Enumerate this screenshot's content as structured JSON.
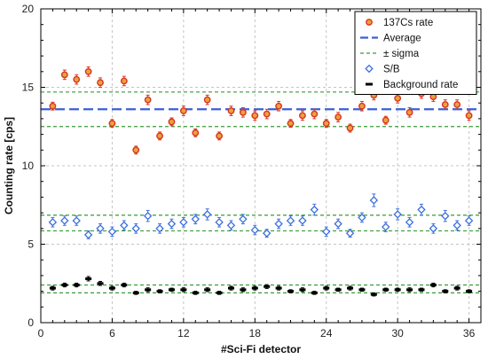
{
  "chart_data": {
    "type": "scatter",
    "xlabel": "#Sci-Fi detector",
    "ylabel": "Counting rate [cps]",
    "xlim": [
      0,
      37
    ],
    "ylim": [
      0,
      20
    ],
    "xticks": [
      0,
      6,
      12,
      18,
      24,
      30,
      36
    ],
    "yticks": [
      0,
      5,
      10,
      15,
      20
    ],
    "grid": true,
    "legend_position": "top-right",
    "legend": [
      {
        "label": "137Cs rate",
        "kind": "circle-marker",
        "color": "#d9341f"
      },
      {
        "label": "Average",
        "kind": "dashed-line",
        "color": "#3d5fd8"
      },
      {
        "label": "± sigma",
        "kind": "dotted-line",
        "color": "#3a9a3a"
      },
      {
        "label": "S/B",
        "kind": "diamond-marker",
        "color": "#3d6fdb"
      },
      {
        "label": "Background rate",
        "kind": "dash-marker",
        "color": "#000000"
      }
    ],
    "series": [
      {
        "name": "137Cs rate",
        "color": "#d9341f",
        "marker": "circle",
        "x": [
          1,
          2,
          3,
          4,
          5,
          6,
          7,
          8,
          9,
          10,
          11,
          12,
          13,
          14,
          15,
          16,
          17,
          18,
          19,
          20,
          21,
          22,
          23,
          24,
          25,
          26,
          27,
          28,
          29,
          30,
          31,
          32,
          33,
          34,
          35,
          36
        ],
        "y": [
          13.8,
          15.8,
          15.5,
          16.0,
          15.3,
          12.7,
          15.4,
          11.0,
          14.2,
          11.9,
          12.8,
          13.5,
          12.1,
          14.2,
          11.9,
          13.5,
          13.4,
          13.2,
          13.3,
          13.8,
          12.7,
          13.2,
          13.3,
          12.7,
          13.1,
          12.4,
          13.8,
          14.5,
          12.9,
          14.3,
          13.4,
          14.6,
          14.4,
          13.9,
          13.9,
          13.2
        ],
        "err": [
          0.25,
          0.3,
          0.3,
          0.3,
          0.3,
          0.25,
          0.3,
          0.25,
          0.3,
          0.25,
          0.25,
          0.3,
          0.25,
          0.3,
          0.25,
          0.3,
          0.3,
          0.3,
          0.3,
          0.3,
          0.25,
          0.3,
          0.3,
          0.25,
          0.3,
          0.25,
          0.3,
          0.3,
          0.25,
          0.3,
          0.3,
          0.3,
          0.3,
          0.3,
          0.3,
          0.3
        ]
      },
      {
        "name": "S/B",
        "color": "#3d6fdb",
        "marker": "diamond",
        "x": [
          1,
          2,
          3,
          4,
          5,
          6,
          7,
          8,
          9,
          10,
          11,
          12,
          13,
          14,
          15,
          16,
          17,
          18,
          19,
          20,
          21,
          22,
          23,
          24,
          25,
          26,
          27,
          28,
          29,
          30,
          31,
          32,
          33,
          34,
          35,
          36
        ],
        "y": [
          6.4,
          6.5,
          6.5,
          5.6,
          6.0,
          5.8,
          6.2,
          6.0,
          6.8,
          6.0,
          6.3,
          6.4,
          6.6,
          6.9,
          6.4,
          6.2,
          6.6,
          5.9,
          5.7,
          6.3,
          6.5,
          6.5,
          7.2,
          5.8,
          6.3,
          5.7,
          6.7,
          7.8,
          6.1,
          6.9,
          6.4,
          7.2,
          6.0,
          6.8,
          6.2,
          6.5
        ],
        "err": [
          0.3,
          0.3,
          0.3,
          0.25,
          0.3,
          0.3,
          0.3,
          0.3,
          0.35,
          0.3,
          0.3,
          0.3,
          0.3,
          0.35,
          0.3,
          0.3,
          0.3,
          0.3,
          0.25,
          0.3,
          0.3,
          0.3,
          0.35,
          0.3,
          0.3,
          0.25,
          0.3,
          0.4,
          0.3,
          0.35,
          0.3,
          0.35,
          0.3,
          0.35,
          0.3,
          0.3
        ]
      },
      {
        "name": "Background rate",
        "color": "#000000",
        "marker": "dash",
        "x": [
          1,
          2,
          3,
          4,
          5,
          6,
          7,
          8,
          9,
          10,
          11,
          12,
          13,
          14,
          15,
          16,
          17,
          18,
          19,
          20,
          21,
          22,
          23,
          24,
          25,
          26,
          27,
          28,
          29,
          30,
          31,
          32,
          33,
          34,
          35,
          36
        ],
        "y": [
          2.2,
          2.4,
          2.4,
          2.8,
          2.5,
          2.2,
          2.4,
          1.9,
          2.1,
          2.0,
          2.1,
          2.1,
          1.9,
          2.1,
          1.9,
          2.2,
          2.1,
          2.2,
          2.3,
          2.2,
          2.0,
          2.1,
          1.9,
          2.2,
          2.1,
          2.2,
          2.1,
          1.8,
          2.1,
          2.1,
          2.1,
          2.1,
          2.4,
          2.0,
          2.2,
          2.0
        ],
        "err": [
          0.12,
          0.12,
          0.12,
          0.14,
          0.13,
          0.12,
          0.12,
          0.1,
          0.12,
          0.1,
          0.1,
          0.12,
          0.1,
          0.12,
          0.1,
          0.12,
          0.12,
          0.12,
          0.12,
          0.12,
          0.1,
          0.12,
          0.1,
          0.12,
          0.1,
          0.12,
          0.1,
          0.1,
          0.1,
          0.1,
          0.12,
          0.1,
          0.12,
          0.1,
          0.12,
          0.1
        ]
      }
    ],
    "reference_lines": [
      {
        "series": "137Cs rate",
        "average": 13.6,
        "lower": 12.5,
        "upper": 14.7
      },
      {
        "series": "S/B",
        "average": 6.35,
        "lower": 5.85,
        "upper": 6.85
      },
      {
        "series": "Background rate",
        "average": 2.15,
        "lower": 1.9,
        "upper": 2.4
      }
    ],
    "colors": {
      "average_line": "#3d5fd8",
      "sigma_line": "#3a9a3a",
      "grid": "#c4c4c4"
    }
  }
}
